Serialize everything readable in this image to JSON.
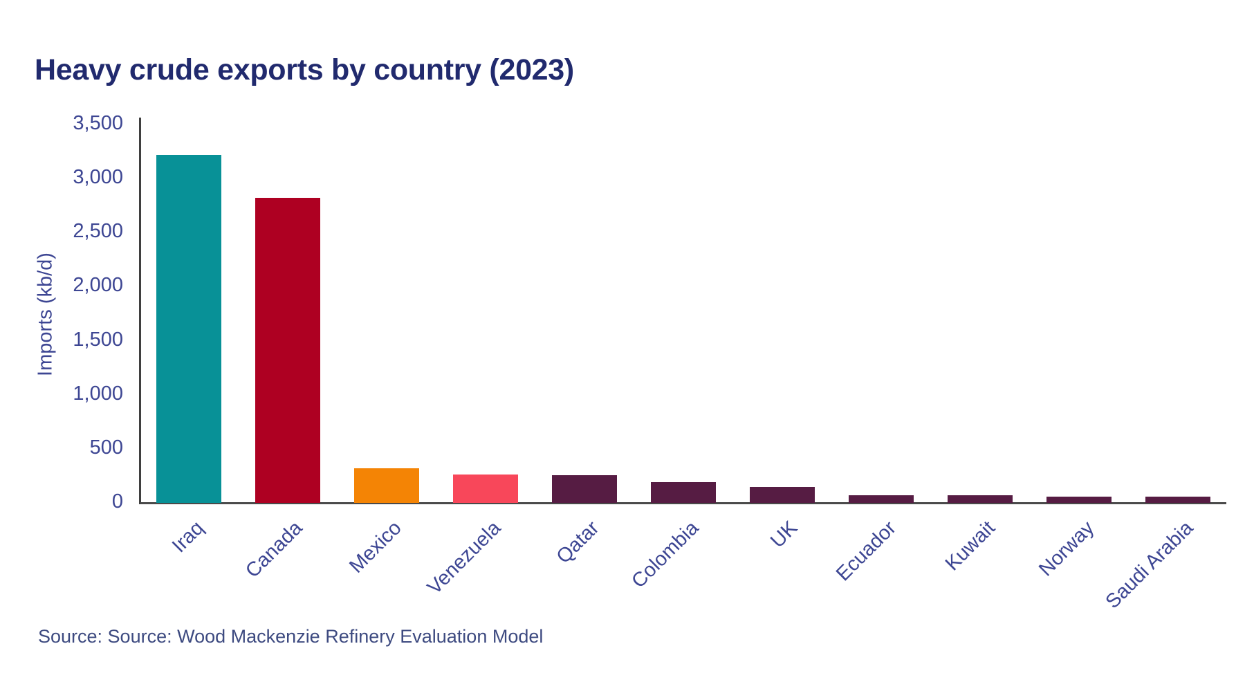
{
  "title": "Heavy crude exports by country (2023)",
  "source_line": "Source: Source: Wood Mackenzie Refinery Evaluation Model",
  "y_axis_label": "Imports (kb/d)",
  "colors": {
    "title_text": "#212a6e",
    "axis_text": "#3d4693",
    "source_text": "#3d4a80",
    "y_axis_line": "#3f3f3f",
    "x_axis_line": "#4a4a4a",
    "background": "#ffffff"
  },
  "chart_data": {
    "type": "bar",
    "title": "Heavy crude exports by country (2023)",
    "xlabel": "",
    "ylabel": "Imports (kb/d)",
    "categories": [
      "Iraq",
      "Canada",
      "Mexico",
      "Venezuela",
      "Qatar",
      "Colombia",
      "UK",
      "Ecuador",
      "Kuwait",
      "Norway",
      "Saudi Arabia"
    ],
    "values": [
      3220,
      2820,
      320,
      260,
      255,
      190,
      150,
      70,
      70,
      60,
      60
    ],
    "bar_colors": [
      "#089197",
      "#ae0022",
      "#f48405",
      "#f8475a",
      "#561c43",
      "#561c43",
      "#561c43",
      "#561c43",
      "#561c43",
      "#561c43",
      "#561c43"
    ],
    "ylim": [
      0,
      3500
    ],
    "ytick_values": [
      0,
      500,
      1000,
      1500,
      2000,
      2500,
      3000,
      3500
    ],
    "ytick_labels": [
      "0",
      "500",
      "1,000",
      "1,500",
      "2,000",
      "2,500",
      "3,000",
      "3,500"
    ],
    "grid": false,
    "legend": null,
    "unit": "kb/d"
  }
}
